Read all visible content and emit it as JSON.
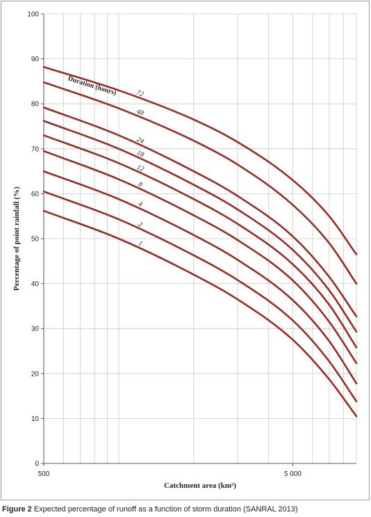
{
  "chart_data": {
    "type": "line",
    "xlabel": "Catchment area (km²)",
    "ylabel": "Percentage of point rainfall (%)",
    "legend_title": "Duration (hours)",
    "x_scale": "log",
    "xlim": [
      500,
      9000
    ],
    "ylim": [
      0,
      100
    ],
    "x_tick_labels": [
      {
        "value": 500,
        "label": "500"
      },
      {
        "value": 5000,
        "label": "5 000"
      }
    ],
    "y_ticks": [
      0,
      10,
      20,
      30,
      40,
      50,
      60,
      70,
      80,
      90,
      100
    ],
    "grid": true,
    "line_color": "#9b2a20",
    "x": [
      500,
      1000,
      2000,
      3000,
      5000,
      7000,
      9000
    ],
    "series": [
      {
        "name": "72",
        "values": [
          88.2,
          83.0,
          76.5,
          71.5,
          63.0,
          55.0,
          46.5
        ]
      },
      {
        "name": "48",
        "values": [
          84.8,
          79.0,
          71.8,
          66.5,
          57.5,
          49.0,
          40.0
        ]
      },
      {
        "name": "24",
        "values": [
          79.2,
          73.0,
          65.0,
          59.5,
          50.5,
          41.5,
          32.7
        ]
      },
      {
        "name": "18",
        "values": [
          76.2,
          70.0,
          62.0,
          56.5,
          47.5,
          38.5,
          29.3
        ]
      },
      {
        "name": "12",
        "values": [
          73.0,
          66.8,
          58.8,
          53.3,
          44.3,
          35.3,
          25.8
        ]
      },
      {
        "name": "8",
        "values": [
          69.5,
          63.2,
          55.2,
          49.7,
          40.7,
          31.5,
          22.3
        ]
      },
      {
        "name": "4",
        "values": [
          65.0,
          58.8,
          50.8,
          45.3,
          36.3,
          27.2,
          17.8
        ]
      },
      {
        "name": "2",
        "values": [
          60.5,
          54.3,
          46.3,
          40.8,
          31.8,
          22.7,
          13.8
        ]
      },
      {
        "name": "1",
        "values": [
          56.2,
          50.0,
          42.0,
          36.5,
          27.5,
          18.7,
          10.5
        ]
      }
    ]
  },
  "caption": {
    "label": "Figure 2",
    "text": "Expected percentage of runoff as a function of storm duration (SANRAL 2013)"
  }
}
